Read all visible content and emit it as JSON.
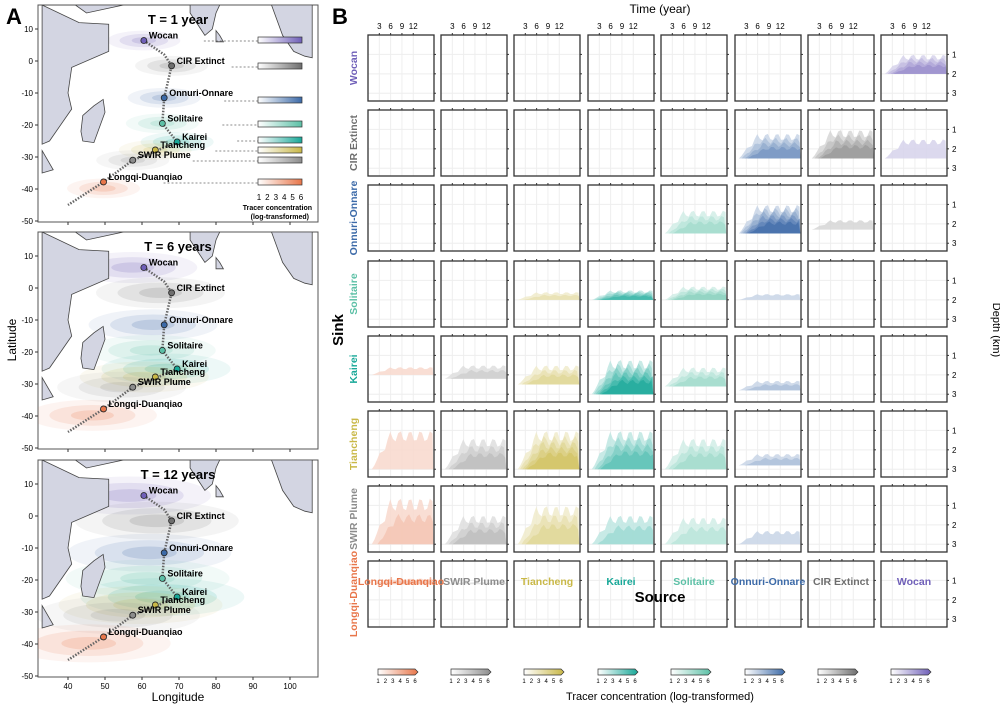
{
  "panel_labels": {
    "a": "A",
    "b": "B"
  },
  "colors": {
    "Longqi-Duanqiao": "#e8764a",
    "SWIR Plume": "#8c8c8c",
    "Tiancheng": "#c9b847",
    "Kairei": "#18a898",
    "Solitaire": "#5cc0a6",
    "Onnuri-Onnare": "#3c6aa8",
    "CIR Extinct": "#6e6e6e",
    "Wocan": "#6f5fb8",
    "land": "#d3d5e2"
  },
  "chart_data": [
    {
      "type": "map",
      "panel": "A",
      "maps": [
        {
          "title": "T = 1 year"
        },
        {
          "title": "T = 6 years"
        },
        {
          "title": "T = 12 years"
        }
      ],
      "xlabel": "Longitude",
      "ylabel": "Latitude",
      "xticks": [
        40,
        50,
        60,
        70,
        80,
        90,
        100
      ],
      "yticks": [
        10,
        0,
        -10,
        -20,
        -30,
        -40,
        -50
      ],
      "xlim": [
        33,
        106
      ],
      "ylim": [
        -50,
        17.5
      ],
      "sites": [
        {
          "name": "Wocan",
          "lon": 60.5,
          "lat": 6.4
        },
        {
          "name": "CIR Extinct",
          "lon": 68,
          "lat": -1.5
        },
        {
          "name": "Onnuri-Onnare",
          "lon": 66,
          "lat": -11.5
        },
        {
          "name": "Solitaire",
          "lon": 65.5,
          "lat": -19.5
        },
        {
          "name": "Kairei",
          "lon": 69.5,
          "lat": -25.3
        },
        {
          "name": "Tiancheng",
          "lon": 63.6,
          "lat": -27.8
        },
        {
          "name": "SWIR Plume",
          "lon": 57.5,
          "lat": -31
        },
        {
          "name": "Longqi-Duanqiao",
          "lon": 49.6,
          "lat": -37.8
        }
      ],
      "colorbar_ticks": [
        1,
        2,
        3,
        4,
        5,
        6
      ],
      "colorbar_label": [
        "Tracer concentration",
        "(log-transformed)"
      ]
    },
    {
      "type": "heatmap",
      "panel": "B",
      "xlabel_top": "Time (year)",
      "xticks": [
        3,
        6,
        9,
        12
      ],
      "xlim": [
        0,
        17.5
      ],
      "ylabel_right": "Depth (km)",
      "yticks": [
        1,
        2,
        3
      ],
      "ylim": [
        0,
        3.4
      ],
      "row_title": "Sink",
      "col_title": "Source",
      "sinks": [
        "Wocan",
        "CIR Extinct",
        "Onnuri-Onnare",
        "Solitaire",
        "Kairei",
        "Tiancheng",
        "SWIR Plume",
        "Longqi-Duanqiao"
      ],
      "sources": [
        "Longqi-Duanqiao",
        "SWIR Plume",
        "Tiancheng",
        "Kairei",
        "Solitaire",
        "Onnuri-Onnare",
        "CIR Extinct",
        "Wocan"
      ],
      "max_level": [
        [
          0,
          0,
          0,
          0,
          0,
          0,
          0,
          4
        ],
        [
          0,
          0,
          0,
          0,
          0,
          4,
          4,
          1
        ],
        [
          0,
          0,
          0,
          0,
          3,
          6,
          1,
          0
        ],
        [
          0,
          0,
          2,
          5,
          4,
          1,
          0,
          0
        ],
        [
          1,
          2,
          3,
          6,
          3,
          2,
          0,
          0
        ],
        [
          1,
          3,
          5,
          4,
          3,
          2,
          0,
          0
        ],
        [
          2,
          3,
          3,
          2,
          2,
          1,
          0,
          0
        ],
        [
          2,
          1,
          0,
          0,
          0,
          0,
          0,
          0
        ]
      ],
      "depth_range_km": [
        [
          null,
          null,
          null,
          null,
          null,
          null,
          null,
          [
            1.0,
            2.0
          ]
        ],
        [
          null,
          null,
          null,
          null,
          null,
          [
            1.2,
            2.5
          ],
          [
            1.0,
            2.5
          ],
          [
            1.5,
            2.5
          ]
        ],
        [
          null,
          null,
          null,
          null,
          [
            1.3,
            2.5
          ],
          [
            1.0,
            2.5
          ],
          [
            1.8,
            2.3
          ],
          null
        ],
        [
          null,
          null,
          [
            1.6,
            2.0
          ],
          [
            1.5,
            2.0
          ],
          [
            1.3,
            2.0
          ],
          [
            1.7,
            2.0
          ],
          null,
          null
        ],
        [
          [
            1.6,
            2.0
          ],
          [
            1.5,
            2.2
          ],
          [
            1.5,
            2.5
          ],
          [
            1.2,
            3.0
          ],
          [
            1.6,
            2.6
          ],
          [
            2.3,
            2.8
          ],
          null,
          null
        ],
        [
          [
            1.0,
            3.0
          ],
          [
            1.4,
            3.0
          ],
          [
            1.0,
            3.0
          ],
          [
            1.0,
            3.0
          ],
          [
            1.4,
            3.0
          ],
          [
            2.2,
            2.8
          ],
          null,
          null
        ],
        [
          [
            0.6,
            3.0
          ],
          [
            1.5,
            3.0
          ],
          [
            1.0,
            3.0
          ],
          [
            1.5,
            3.0
          ],
          [
            1.6,
            3.0
          ],
          [
            2.3,
            3.0
          ],
          null,
          null
        ],
        [
          [
            0.9,
            1.2
          ],
          [
            1.1,
            1.2
          ],
          null,
          null,
          null,
          null,
          null,
          null
        ]
      ],
      "colorbar_ticks": [
        1,
        2,
        3,
        4,
        5,
        6
      ],
      "colorbar_label": "Tracer concentration  (log-transformed)"
    }
  ]
}
